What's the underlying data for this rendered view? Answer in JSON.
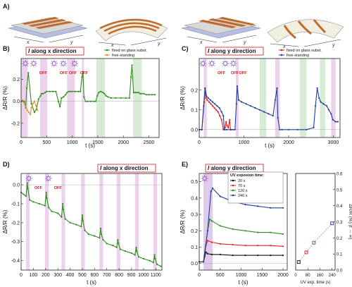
{
  "colors": {
    "green": "#2f8c1e",
    "orange": "#f08c1e",
    "blue": "#1f3b9c",
    "red": "#e0201a",
    "purple": "#8a55c0",
    "shadeGreen": "#d7ecd5",
    "shadePink": "#ecd2ec",
    "offRed": "#d0181c",
    "black": "#111111",
    "uvBand": "#c9a6df"
  },
  "panelA": {
    "letter": "A)"
  },
  "chart_data": [
    {
      "panel": "B)",
      "type": "line",
      "title_prefix": "I",
      "title_rest": " along x direction",
      "xlabel": "t (s)",
      "ylabel": "ΔR/R (%)",
      "xlim": [
        0,
        2700
      ],
      "ylim": [
        -0.33,
        0.39
      ],
      "xticks": [
        0,
        500,
        1000,
        1500,
        2000,
        2500
      ],
      "yticks": [
        -0.2,
        0.0,
        0.2
      ],
      "shades": [
        [
          0,
          130,
          "pink"
        ],
        [
          370,
          510,
          "pink"
        ],
        [
          900,
          1050,
          "pink"
        ],
        [
          1190,
          1230,
          "pink"
        ],
        [
          1470,
          1640,
          "green"
        ],
        [
          2190,
          2360,
          "green"
        ]
      ],
      "uv_markers": [
        {
          "x": 30,
          "off": ""
        },
        {
          "x": 190,
          "off": "OFF"
        },
        {
          "x": 590,
          "off": "OFF"
        },
        {
          "x": 770,
          "off": "OFF"
        },
        {
          "x": 990,
          "off": "OFF"
        }
      ],
      "legend": [
        "fixed on glass subst.",
        "free-standing"
      ],
      "series": [
        {
          "name": "fixed on glass subst.",
          "color": "green",
          "x": [
            0,
            60,
            90,
            110,
            140,
            200,
            260,
            300,
            340,
            380,
            400,
            430,
            470,
            500,
            560,
            620,
            680,
            730,
            760,
            790,
            830,
            870,
            900,
            930,
            960,
            1000,
            1060,
            1120,
            1160,
            1190,
            1210,
            1230,
            1260,
            1300,
            1360,
            1420,
            1460,
            1490,
            1520,
            1560,
            1600,
            1630,
            1660,
            1700,
            1760,
            1850,
            1950,
            2050,
            2120,
            2150,
            2170,
            2200,
            2230,
            2260,
            2300,
            2330,
            2360,
            2400,
            2450,
            2500,
            2560,
            2620
          ],
          "y": [
            0.0,
            0.0,
            -0.06,
            0.12,
            0.26,
            -0.02,
            -0.1,
            -0.07,
            0.02,
            0.05,
            0.07,
            0.07,
            0.08,
            0.09,
            0.09,
            0.09,
            0.09,
            0.0,
            -0.05,
            0.03,
            0.04,
            0.06,
            0.08,
            0.09,
            0.09,
            0.09,
            0.09,
            0.09,
            0.09,
            0.22,
            0.27,
            0.04,
            0.0,
            0.0,
            0.0,
            0.0,
            0.0,
            0.05,
            0.08,
            0.09,
            0.08,
            0.07,
            0.05,
            0.04,
            0.03,
            0.03,
            0.03,
            0.03,
            0.03,
            0.22,
            0.33,
            0.08,
            0.08,
            0.08,
            0.08,
            0.07,
            0.07,
            0.07,
            0.06,
            0.06,
            0.06,
            0.06
          ]
        },
        {
          "name": "free-standing",
          "color": "orange",
          "x": [
            0,
            30,
            60,
            90,
            120,
            150,
            180,
            200,
            230,
            260,
            290,
            320
          ],
          "y": [
            0.0,
            0.01,
            -0.02,
            -0.05,
            -0.08,
            -0.1,
            -0.12,
            -0.06,
            -0.02,
            0.0,
            -0.04,
            -0.08
          ]
        }
      ]
    },
    {
      "panel": "C)",
      "type": "line",
      "title_prefix": "I",
      "title_rest": " along y direction",
      "xlabel": "t (s)",
      "ylabel": "ΔR/R (%)",
      "xlim": [
        0,
        3150
      ],
      "ylim": [
        -0.04,
        0.36
      ],
      "xticks": [
        0,
        1000,
        2000,
        3000
      ],
      "yticks": [
        0.0,
        0.1,
        0.2
      ],
      "shades": [
        [
          100,
          170,
          "pink"
        ],
        [
          820,
          880,
          "pink"
        ],
        [
          1350,
          1500,
          "green"
        ],
        [
          1700,
          1800,
          "pink"
        ],
        [
          2250,
          2400,
          "green"
        ],
        [
          2700,
          2820,
          "green"
        ],
        [
          2950,
          3050,
          "pink"
        ]
      ],
      "uv_markers": [
        {
          "x": 20,
          "off": ""
        },
        {
          "x": 220,
          "off": "OFF"
        },
        {
          "x": 520,
          "off": "OFF"
        },
        {
          "x": 700,
          "off": "OFF"
        }
      ],
      "legend": [
        "fixed on glass subst.",
        "free-standing"
      ],
      "series": [
        {
          "name": "fixed on glass subst.",
          "color": "red",
          "x": [
            0,
            60,
            110,
            130,
            150,
            180,
            220,
            260,
            300,
            340,
            380,
            420,
            460,
            500,
            540,
            580,
            600,
            620,
            650,
            680,
            700,
            720,
            760
          ],
          "y": [
            0.0,
            0.0,
            0.14,
            0.21,
            0.16,
            0.15,
            0.14,
            0.13,
            0.12,
            0.11,
            0.1,
            0.09,
            0.07,
            0.05,
            0.0,
            0.01,
            0.04,
            0.02,
            0.01,
            0.05,
            0.0,
            0.0,
            0.0
          ]
        },
        {
          "name": "free-standing",
          "color": "blue",
          "x": [
            0,
            60,
            100,
            130,
            160,
            200,
            250,
            300,
            350,
            400,
            450,
            500,
            540,
            560,
            580,
            620,
            700,
            800,
            830,
            850,
            880,
            950,
            1050,
            1150,
            1250,
            1350,
            1450,
            1550,
            1650,
            1700,
            1740,
            1760,
            1800,
            1850,
            2000,
            2200,
            2400,
            2560,
            2600,
            2640,
            2680,
            2720,
            2780,
            2850,
            2900,
            2950,
            2990,
            3050,
            3100
          ],
          "y": [
            0.0,
            0.0,
            0.12,
            0.21,
            0.17,
            0.16,
            0.15,
            0.14,
            0.13,
            0.12,
            0.11,
            0.09,
            0.07,
            0.0,
            0.0,
            0.0,
            0.0,
            0.0,
            0.13,
            0.22,
            0.15,
            0.14,
            0.13,
            0.12,
            0.11,
            0.1,
            0.09,
            0.08,
            0.07,
            0.15,
            0.21,
            0.06,
            0.0,
            0.0,
            0.0,
            0.0,
            0.0,
            0.01,
            0.12,
            0.21,
            0.16,
            0.14,
            0.13,
            0.12,
            0.1,
            0.08,
            0.05,
            0.04,
            0.04
          ]
        }
      ]
    },
    {
      "panel": "D)",
      "type": "line",
      "title_prefix": "I",
      "title_rest": " along x direction",
      "xlabel": "t (s)",
      "ylabel": "ΔR/R (%)",
      "xlim": [
        0,
        1150
      ],
      "ylim": [
        -0.45,
        0.06
      ],
      "xticks": [
        0,
        100,
        200,
        300,
        400,
        500,
        600,
        700,
        800,
        900,
        1000,
        1100
      ],
      "yticks": [
        -0.4,
        -0.3,
        -0.2,
        -0.1,
        0.0
      ],
      "shades": [
        [
          40,
          70,
          "pink"
        ],
        [
          195,
          225,
          "pink"
        ],
        [
          330,
          360,
          "pink"
        ],
        [
          490,
          520,
          "pink"
        ],
        [
          640,
          670,
          "pink"
        ],
        [
          780,
          810,
          "pink"
        ],
        [
          930,
          960,
          "pink"
        ],
        [
          1080,
          1110,
          "pink"
        ]
      ],
      "uv_markers": [
        {
          "x": 40,
          "off": "OFF"
        },
        {
          "x": 200,
          "off": "OFF"
        }
      ],
      "legend": [],
      "series": [
        {
          "name": "",
          "color": "green",
          "x": [
            0,
            20,
            40,
            50,
            55,
            70,
            100,
            150,
            195,
            205,
            210,
            225,
            250,
            300,
            330,
            340,
            345,
            360,
            400,
            450,
            490,
            500,
            505,
            520,
            550,
            600,
            640,
            650,
            655,
            670,
            700,
            750,
            780,
            790,
            795,
            810,
            850,
            900,
            930,
            940,
            945,
            960,
            1000,
            1050,
            1080,
            1090,
            1095,
            1110,
            1140
          ],
          "y": [
            -0.04,
            -0.05,
            -0.06,
            0.01,
            -0.02,
            -0.08,
            -0.09,
            -0.1,
            -0.11,
            -0.04,
            -0.07,
            -0.12,
            -0.14,
            -0.15,
            -0.17,
            -0.1,
            -0.13,
            -0.18,
            -0.2,
            -0.21,
            -0.22,
            -0.16,
            -0.19,
            -0.24,
            -0.26,
            -0.27,
            -0.28,
            -0.23,
            -0.26,
            -0.29,
            -0.31,
            -0.32,
            -0.33,
            -0.29,
            -0.31,
            -0.34,
            -0.35,
            -0.36,
            -0.37,
            -0.33,
            -0.35,
            -0.38,
            -0.39,
            -0.4,
            -0.41,
            -0.37,
            -0.39,
            -0.42,
            -0.43
          ]
        }
      ]
    },
    {
      "panel": "E)",
      "type": "line",
      "title_prefix": "I",
      "title_rest": " along y direction",
      "xlabel": "t (s)",
      "ylabel": "ΔR/R (%)",
      "xlim": [
        0,
        2100
      ],
      "ylim": [
        -0.04,
        0.55
      ],
      "xticks": [
        0,
        500,
        1000,
        1500,
        2000
      ],
      "yticks": [
        0.0,
        0.1,
        0.2,
        0.3,
        0.4,
        0.5
      ],
      "shades": [],
      "uv_band": [
        100,
        320
      ],
      "uv_markers": [
        {
          "x": 60,
          "off": ""
        }
      ],
      "legend_title": "UV exposion time:",
      "legend": [
        "20 s",
        "70 s",
        "120 s",
        "240 s"
      ],
      "series": [
        {
          "name": "20 s",
          "color": "black",
          "x": [
            0,
            100,
            160,
            200,
            300,
            500,
            800,
            1100,
            1400,
            1700,
            2000
          ],
          "y": [
            0.01,
            0.01,
            0.07,
            0.06,
            0.055,
            0.055,
            0.05,
            0.05,
            0.05,
            0.05,
            0.05
          ]
        },
        {
          "name": "70 s",
          "color": "red",
          "x": [
            0,
            100,
            160,
            200,
            300,
            500,
            800,
            1100,
            1400,
            1700,
            2000
          ],
          "y": [
            0.01,
            0.01,
            0.11,
            0.14,
            0.13,
            0.12,
            0.115,
            0.11,
            0.11,
            0.11,
            0.105
          ]
        },
        {
          "name": "120 s",
          "color": "green",
          "x": [
            0,
            100,
            200,
            250,
            300,
            500,
            800,
            1100,
            1400,
            1700,
            2000
          ],
          "y": [
            0.01,
            0.01,
            0.2,
            0.27,
            0.26,
            0.23,
            0.21,
            0.2,
            0.19,
            0.19,
            0.18
          ]
        },
        {
          "name": "240 s",
          "color": "blue",
          "x": [
            0,
            100,
            200,
            280,
            320,
            500,
            800,
            1100,
            1400,
            1700,
            2000
          ],
          "y": [
            0.01,
            0.01,
            0.2,
            0.44,
            0.46,
            0.41,
            0.38,
            0.36,
            0.35,
            0.34,
            0.34
          ]
        }
      ],
      "inset": {
        "type": "scatter",
        "xlabel": "UV exp. time (s)",
        "ylabel": "ΔR/R (%) (t → ∞)",
        "xlim": [
          0,
          260
        ],
        "ylim": [
          0,
          0.6
        ],
        "xticks": [
          0,
          80,
          160,
          240
        ],
        "yticks": [
          0.0,
          0.1,
          0.2,
          0.3,
          0.4,
          0.5,
          0.6
        ],
        "x": [
          20,
          70,
          120,
          240
        ],
        "y": [
          0.05,
          0.11,
          0.17,
          0.29
        ],
        "colors": [
          "black",
          "red",
          "green",
          "blue"
        ]
      }
    }
  ]
}
